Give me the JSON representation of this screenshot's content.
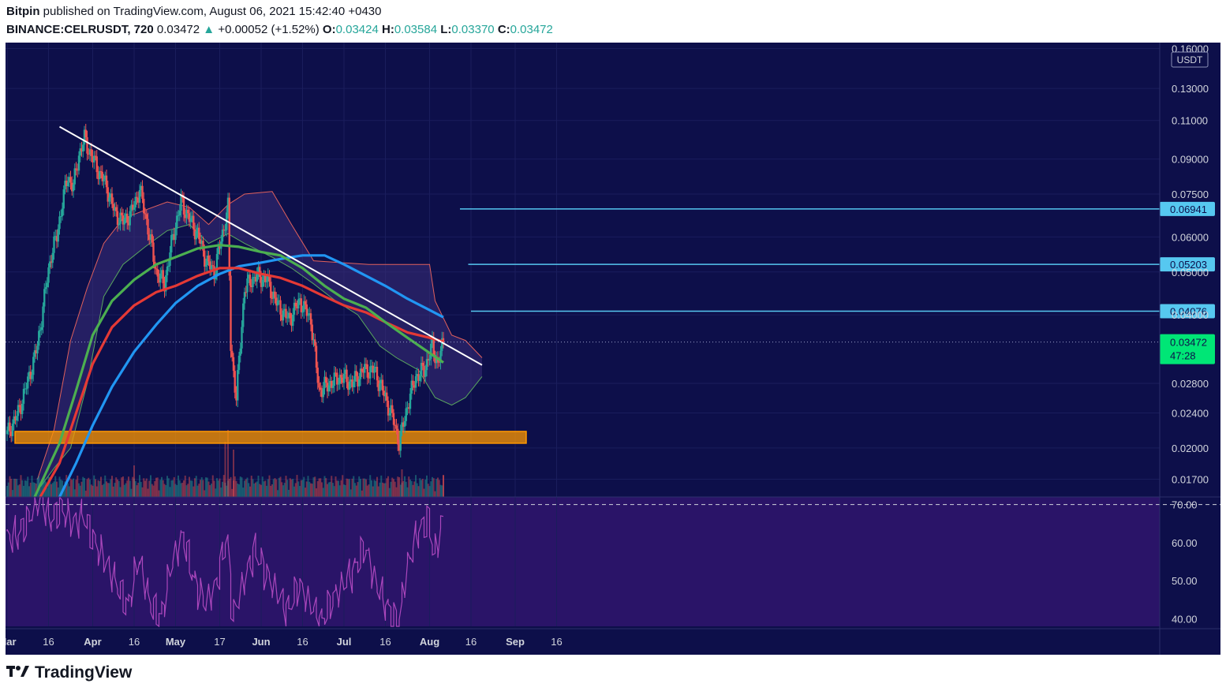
{
  "header": {
    "publisher": "Bitpin",
    "published_text": "published on TradingView.com, August 06, 2021 15:42:40 +0430",
    "symbol": "BINANCE:CELRUSDT, 720",
    "last": "0.03472",
    "arrow": "▲",
    "change": "+0.00052 (+1.52%)",
    "o_label": "O:",
    "o_value": "0.03424",
    "h_label": "H:",
    "h_value": "0.03584",
    "l_label": "L:",
    "l_value": "0.03370",
    "c_label": "C:",
    "c_value": "0.03472"
  },
  "brand": {
    "logo_icon": "tradingview-logo-icon",
    "name": "TradingView"
  },
  "colors": {
    "panel_bg": "#0d0f4a",
    "rsi_bg": "#2a1468",
    "grid": "#1a1d5c",
    "up": "#26a69a",
    "down": "#ef5350",
    "ema_green": "#4caf50",
    "ema_red": "#e53935",
    "ema_blue": "#2196f3",
    "trendline": "#ffffff",
    "support_zone": "#ff9800",
    "level_line": "#56c8f0",
    "rsi_line": "#ab47bc",
    "price_label": "#00e676"
  },
  "chart_data": {
    "type": "candlestick",
    "symbol": "BINANCE:CELRUSDT",
    "interval": "720",
    "y_scale": "log",
    "y_unit": "USDT",
    "ylim": [
      0.0155,
      0.165
    ],
    "x_tick_labels": [
      "Mar",
      "16",
      "Apr",
      "16",
      "May",
      "17",
      "Jun",
      "16",
      "Jul",
      "16",
      "Aug",
      "16",
      "Sep",
      "16"
    ],
    "x_tick_dates": [
      "2021-03-01",
      "2021-03-16",
      "2021-04-01",
      "2021-04-16",
      "2021-05-01",
      "2021-05-17",
      "2021-06-01",
      "2021-06-16",
      "2021-07-01",
      "2021-07-16",
      "2021-08-01",
      "2021-08-16",
      "2021-09-01",
      "2021-09-16"
    ],
    "y_tick_labels": [
      "0.16000",
      "0.13000",
      "0.11000",
      "0.09000",
      "0.07500",
      "0.06000",
      "0.05000",
      "0.04000",
      "0.02800",
      "0.02400",
      "0.02000",
      "0.01700"
    ],
    "y_ticks": [
      0.16,
      0.13,
      0.11,
      0.09,
      0.075,
      0.06,
      0.05,
      0.04,
      0.028,
      0.024,
      0.02,
      0.017
    ],
    "current_price": {
      "value": 0.03472,
      "label": "0.03472",
      "countdown": "47:28"
    },
    "price_levels": [
      {
        "value": 0.06941,
        "label": "0.06941",
        "from_date": "2021-08-12"
      },
      {
        "value": 0.05203,
        "label": "0.05203",
        "from_date": "2021-08-15"
      },
      {
        "value": 0.04076,
        "label": "0.04076",
        "from_date": "2021-08-16"
      }
    ],
    "support_zone": {
      "low": 0.0205,
      "high": 0.0218,
      "from_date": "2021-03-01",
      "to_date": "2021-09-05"
    },
    "trendline": {
      "points": [
        {
          "date": "2021-03-20",
          "value": 0.1065
        },
        {
          "date": "2021-08-20",
          "value": 0.0308
        }
      ]
    },
    "ema_green": [
      [
        "2021-03-11",
        0.0155
      ],
      [
        "2021-03-20",
        0.0205
      ],
      [
        "2021-03-26",
        0.027
      ],
      [
        "2021-04-01",
        0.036
      ],
      [
        "2021-04-08",
        0.043
      ],
      [
        "2021-04-16",
        0.048
      ],
      [
        "2021-04-24",
        0.052
      ],
      [
        "2021-05-01",
        0.054
      ],
      [
        "2021-05-09",
        0.0565
      ],
      [
        "2021-05-17",
        0.0575
      ],
      [
        "2021-05-24",
        0.057
      ],
      [
        "2021-06-01",
        0.0555
      ],
      [
        "2021-06-08",
        0.0545
      ],
      [
        "2021-06-16",
        0.051
      ],
      [
        "2021-06-24",
        0.0465
      ],
      [
        "2021-07-01",
        0.0435
      ],
      [
        "2021-07-09",
        0.0415
      ],
      [
        "2021-07-16",
        0.0385
      ],
      [
        "2021-07-24",
        0.0355
      ],
      [
        "2021-08-01",
        0.0328
      ],
      [
        "2021-08-06",
        0.0312
      ]
    ],
    "ema_red": [
      [
        "2021-03-13",
        0.0155
      ],
      [
        "2021-03-20",
        0.0185
      ],
      [
        "2021-03-26",
        0.024
      ],
      [
        "2021-04-01",
        0.031
      ],
      [
        "2021-04-08",
        0.0375
      ],
      [
        "2021-04-16",
        0.042
      ],
      [
        "2021-04-24",
        0.045
      ],
      [
        "2021-05-01",
        0.0465
      ],
      [
        "2021-05-09",
        0.049
      ],
      [
        "2021-05-17",
        0.051
      ],
      [
        "2021-05-24",
        0.051
      ],
      [
        "2021-06-01",
        0.0495
      ],
      [
        "2021-06-08",
        0.0485
      ],
      [
        "2021-06-16",
        0.0465
      ],
      [
        "2021-06-24",
        0.044
      ],
      [
        "2021-07-01",
        0.042
      ],
      [
        "2021-07-09",
        0.0405
      ],
      [
        "2021-07-16",
        0.0385
      ],
      [
        "2021-07-24",
        0.0365
      ],
      [
        "2021-08-01",
        0.0355
      ],
      [
        "2021-08-06",
        0.0348
      ]
    ],
    "ema_blue": [
      [
        "2021-03-20",
        0.0155
      ],
      [
        "2021-03-26",
        0.0185
      ],
      [
        "2021-04-01",
        0.0225
      ],
      [
        "2021-04-08",
        0.0275
      ],
      [
        "2021-04-16",
        0.033
      ],
      [
        "2021-04-24",
        0.038
      ],
      [
        "2021-05-01",
        0.0425
      ],
      [
        "2021-05-09",
        0.0465
      ],
      [
        "2021-05-17",
        0.0495
      ],
      [
        "2021-05-24",
        0.0515
      ],
      [
        "2021-06-01",
        0.0525
      ],
      [
        "2021-06-08",
        0.0535
      ],
      [
        "2021-06-16",
        0.0545
      ],
      [
        "2021-06-24",
        0.0545
      ],
      [
        "2021-07-01",
        0.052
      ],
      [
        "2021-07-09",
        0.049
      ],
      [
        "2021-07-16",
        0.0465
      ],
      [
        "2021-07-24",
        0.0435
      ],
      [
        "2021-08-01",
        0.041
      ],
      [
        "2021-08-06",
        0.0395
      ]
    ],
    "cloud_top": [
      [
        "2021-03-12",
        0.017
      ],
      [
        "2021-03-18",
        0.022
      ],
      [
        "2021-03-24",
        0.035
      ],
      [
        "2021-03-30",
        0.046
      ],
      [
        "2021-04-05",
        0.058
      ],
      [
        "2021-04-12",
        0.066
      ],
      [
        "2021-04-20",
        0.069
      ],
      [
        "2021-04-28",
        0.072
      ],
      [
        "2021-05-06",
        0.07
      ],
      [
        "2021-05-13",
        0.064
      ],
      [
        "2021-05-20",
        0.071
      ],
      [
        "2021-05-26",
        0.075
      ],
      [
        "2021-06-05",
        0.076
      ],
      [
        "2021-06-12",
        0.064
      ],
      [
        "2021-06-20",
        0.053
      ],
      [
        "2021-07-10",
        0.052
      ],
      [
        "2021-08-01",
        0.052
      ],
      [
        "2021-08-03",
        0.043
      ],
      [
        "2021-08-09",
        0.036
      ],
      [
        "2021-08-14",
        0.035
      ],
      [
        "2021-08-20",
        0.032
      ]
    ],
    "cloud_bottom": [
      [
        "2021-03-12",
        0.016
      ],
      [
        "2021-03-18",
        0.018
      ],
      [
        "2021-03-24",
        0.02
      ],
      [
        "2021-03-30",
        0.028
      ],
      [
        "2021-04-05",
        0.044
      ],
      [
        "2021-04-12",
        0.052
      ],
      [
        "2021-04-20",
        0.057
      ],
      [
        "2021-04-28",
        0.062
      ],
      [
        "2021-05-06",
        0.064
      ],
      [
        "2021-05-13",
        0.058
      ],
      [
        "2021-05-20",
        0.061
      ],
      [
        "2021-05-26",
        0.058
      ],
      [
        "2021-06-05",
        0.054
      ],
      [
        "2021-06-12",
        0.051
      ],
      [
        "2021-06-20",
        0.047
      ],
      [
        "2021-06-28",
        0.043
      ],
      [
        "2021-07-06",
        0.04
      ],
      [
        "2021-07-14",
        0.034
      ],
      [
        "2021-07-20",
        0.032
      ],
      [
        "2021-07-28",
        0.03
      ],
      [
        "2021-08-03",
        0.026
      ],
      [
        "2021-08-09",
        0.025
      ],
      [
        "2021-08-14",
        0.026
      ],
      [
        "2021-08-20",
        0.029
      ]
    ],
    "candles_close": [
      [
        "2021-03-01",
        0.0215
      ],
      [
        "2021-03-05",
        0.024
      ],
      [
        "2021-03-09",
        0.029
      ],
      [
        "2021-03-12",
        0.034
      ],
      [
        "2021-03-15",
        0.046
      ],
      [
        "2021-03-17",
        0.055
      ],
      [
        "2021-03-19",
        0.06
      ],
      [
        "2021-03-21",
        0.072
      ],
      [
        "2021-03-23",
        0.082
      ],
      [
        "2021-03-25",
        0.078
      ],
      [
        "2021-03-27",
        0.092
      ],
      [
        "2021-03-29",
        0.1
      ],
      [
        "2021-03-31",
        0.093
      ],
      [
        "2021-04-03",
        0.085
      ],
      [
        "2021-04-06",
        0.078
      ],
      [
        "2021-04-09",
        0.068
      ],
      [
        "2021-04-12",
        0.065
      ],
      [
        "2021-04-15",
        0.068
      ],
      [
        "2021-04-18",
        0.077
      ],
      [
        "2021-04-21",
        0.063
      ],
      [
        "2021-04-24",
        0.05
      ],
      [
        "2021-04-27",
        0.047
      ],
      [
        "2021-04-30",
        0.06
      ],
      [
        "2021-05-03",
        0.072
      ],
      [
        "2021-05-06",
        0.066
      ],
      [
        "2021-05-09",
        0.061
      ],
      [
        "2021-05-12",
        0.053
      ],
      [
        "2021-05-15",
        0.05
      ],
      [
        "2021-05-18",
        0.061
      ],
      [
        "2021-05-20",
        0.07
      ],
      [
        "2021-05-21",
        0.034
      ],
      [
        "2021-05-23",
        0.026
      ],
      [
        "2021-05-26",
        0.046
      ],
      [
        "2021-05-30",
        0.049
      ],
      [
        "2021-06-03",
        0.048
      ],
      [
        "2021-06-07",
        0.042
      ],
      [
        "2021-06-11",
        0.039
      ],
      [
        "2021-06-15",
        0.043
      ],
      [
        "2021-06-19",
        0.039
      ],
      [
        "2021-06-22",
        0.027
      ],
      [
        "2021-06-26",
        0.028
      ],
      [
        "2021-06-30",
        0.029
      ],
      [
        "2021-07-04",
        0.028
      ],
      [
        "2021-07-08",
        0.03
      ],
      [
        "2021-07-12",
        0.03
      ],
      [
        "2021-07-16",
        0.026
      ],
      [
        "2021-07-19",
        0.023
      ],
      [
        "2021-07-21",
        0.0205
      ],
      [
        "2021-07-24",
        0.025
      ],
      [
        "2021-07-27",
        0.029
      ],
      [
        "2021-07-30",
        0.03
      ],
      [
        "2021-08-02",
        0.034
      ],
      [
        "2021-08-04",
        0.031
      ],
      [
        "2021-08-06",
        0.03472
      ]
    ],
    "volume_spikes": [
      "2021-04-16",
      "2021-05-19",
      "2021-05-20",
      "2021-05-22",
      "2021-07-22",
      "2021-08-06"
    ],
    "rsi": {
      "ylim": [
        38,
        72
      ],
      "y_tick_labels": [
        "70.00",
        "60.00",
        "50.00",
        "40.00"
      ],
      "y_ticks": [
        70,
        60,
        50,
        40
      ],
      "overbought": 70,
      "values": [
        [
          "2021-03-01",
          61
        ],
        [
          "2021-03-05",
          62
        ],
        [
          "2021-03-09",
          66
        ],
        [
          "2021-03-13",
          72
        ],
        [
          "2021-03-17",
          66
        ],
        [
          "2021-03-21",
          69
        ],
        [
          "2021-03-25",
          65
        ],
        [
          "2021-03-29",
          67
        ],
        [
          "2021-04-02",
          60
        ],
        [
          "2021-04-06",
          55
        ],
        [
          "2021-04-10",
          49
        ],
        [
          "2021-04-14",
          43
        ],
        [
          "2021-04-18",
          56
        ],
        [
          "2021-04-22",
          44
        ],
        [
          "2021-04-26",
          40
        ],
        [
          "2021-04-30",
          55
        ],
        [
          "2021-05-04",
          62
        ],
        [
          "2021-05-08",
          50
        ],
        [
          "2021-05-12",
          44
        ],
        [
          "2021-05-16",
          49
        ],
        [
          "2021-05-20",
          62
        ],
        [
          "2021-05-22",
          40
        ],
        [
          "2021-05-26",
          50
        ],
        [
          "2021-05-30",
          58
        ],
        [
          "2021-06-03",
          52
        ],
        [
          "2021-06-07",
          47
        ],
        [
          "2021-06-11",
          42
        ],
        [
          "2021-06-15",
          49
        ],
        [
          "2021-06-19",
          44
        ],
        [
          "2021-06-23",
          39
        ],
        [
          "2021-06-27",
          45
        ],
        [
          "2021-07-01",
          49
        ],
        [
          "2021-07-05",
          53
        ],
        [
          "2021-07-09",
          59
        ],
        [
          "2021-07-13",
          49
        ],
        [
          "2021-07-17",
          43
        ],
        [
          "2021-07-21",
          38
        ],
        [
          "2021-07-24",
          53
        ],
        [
          "2021-07-28",
          63
        ],
        [
          "2021-08-01",
          66
        ],
        [
          "2021-08-03",
          56
        ],
        [
          "2021-08-06",
          66
        ]
      ]
    }
  }
}
